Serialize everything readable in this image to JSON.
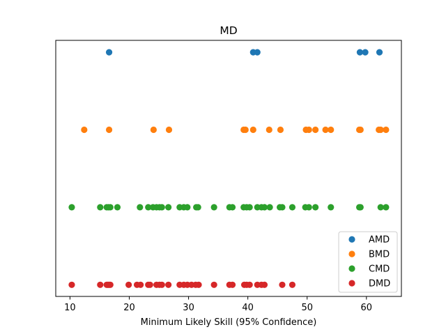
{
  "chart_data": {
    "type": "scatter",
    "title": "MD",
    "xlabel": "Minimum Likely Skill (95% Confidence)",
    "ylabel": "",
    "xlim": [
      7.6,
      65.9
    ],
    "xticks": [
      10,
      20,
      30,
      40,
      50,
      60
    ],
    "yticks_visible": false,
    "grid": false,
    "legend": "lower-right",
    "series": [
      {
        "name": "AMD",
        "color": "#1f77b4",
        "level": 3,
        "x": [
          16.6,
          40.9,
          41.6,
          58.9,
          59.8,
          62.2
        ]
      },
      {
        "name": "BMD",
        "color": "#ff7f0e",
        "level": 2,
        "x": [
          12.4,
          16.6,
          24.1,
          26.7,
          39.3,
          39.6,
          40.9,
          43.6,
          45.5,
          49.8,
          50.3,
          51.4,
          53.1,
          54.0,
          58.8,
          59.0,
          62.1,
          62.4,
          63.3
        ]
      },
      {
        "name": "CMD",
        "color": "#2ca02c",
        "level": 1,
        "x": [
          10.3,
          15.1,
          16.2,
          16.5,
          16.8,
          18.0,
          21.8,
          23.2,
          24.0,
          24.6,
          25.1,
          25.5,
          26.6,
          28.5,
          29.2,
          29.8,
          31.3,
          31.6,
          34.3,
          36.9,
          37.4,
          39.3,
          39.8,
          40.3,
          41.6,
          42.3,
          42.8,
          43.7,
          45.4,
          45.8,
          47.5,
          49.7,
          50.3,
          51.4,
          54.0,
          58.8,
          59.0,
          62.4,
          63.3
        ]
      },
      {
        "name": "DMD",
        "color": "#d62728",
        "level": 0,
        "x": [
          10.3,
          15.1,
          16.2,
          16.4,
          16.6,
          16.8,
          19.9,
          21.3,
          21.9,
          23.2,
          23.5,
          24.6,
          25.1,
          25.5,
          26.6,
          28.5,
          29.2,
          29.8,
          30.5,
          31.2,
          31.7,
          34.3,
          36.9,
          37.4,
          39.4,
          39.8,
          40.3,
          41.6,
          42.3,
          42.8,
          45.8,
          47.5
        ]
      }
    ]
  }
}
